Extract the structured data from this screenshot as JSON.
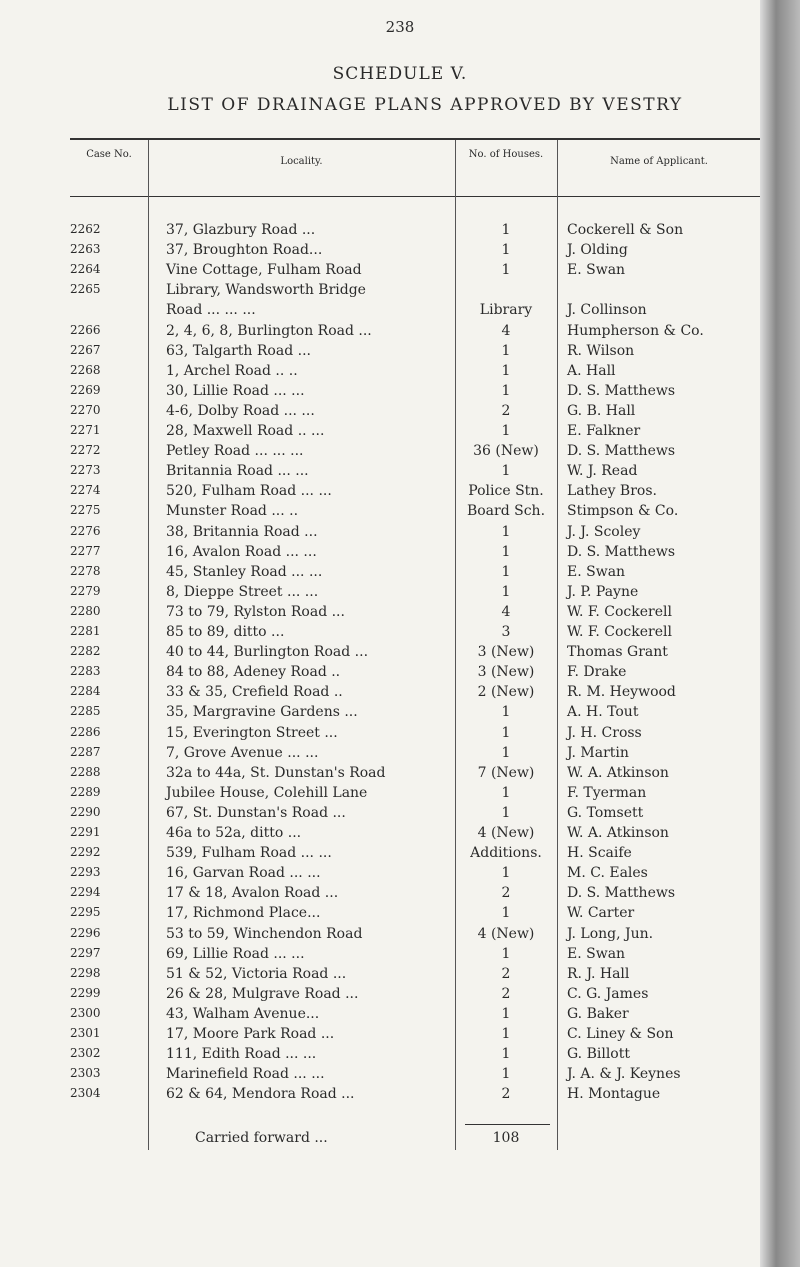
{
  "page_number": "238",
  "schedule": "SCHEDULE V.",
  "title": "LIST OF DRAINAGE PLANS APPROVED BY VESTRY",
  "headers": {
    "case": "Case No.",
    "locality": "Locality.",
    "houses": "No. of Houses.",
    "applicant": "Name of Applicant."
  },
  "rows": [
    [
      "2262",
      "37, Glazbury Road ...",
      "1",
      "Cockerell & Son"
    ],
    [
      "2263",
      "37, Broughton Road...",
      "1",
      "J. Olding"
    ],
    [
      "2264",
      "Vine Cottage, Fulham Road",
      "1",
      "E. Swan"
    ],
    [
      "2265",
      "Library, Wandsworth Bridge",
      "",
      ""
    ],
    [
      "",
      "   Road ... ... ...",
      "Library",
      "J. Collinson"
    ],
    [
      "2266",
      "2, 4, 6, 8, Burlington Road ...",
      "4",
      "Humpherson & Co."
    ],
    [
      "2267",
      "63, Talgarth Road ...",
      "1",
      "R. Wilson"
    ],
    [
      "2268",
      "1, Archel Road .. ..",
      "1",
      "A. Hall"
    ],
    [
      "2269",
      "30, Lillie Road ... ...",
      "1",
      "D. S. Matthews"
    ],
    [
      "2270",
      "4-6, Dolby Road ... ...",
      "2",
      "G. B. Hall"
    ],
    [
      "2271",
      "28, Maxwell Road .. ...",
      "1",
      "E. Falkner"
    ],
    [
      "2272",
      "Petley Road ... ... ...",
      "36 (New)",
      "D. S. Matthews"
    ],
    [
      "2273",
      "Britannia Road ... ...",
      "1",
      "W. J. Read"
    ],
    [
      "2274",
      "520, Fulham Road ... ...",
      "Police Stn.",
      "Lathey Bros."
    ],
    [
      "2275",
      "Munster Road ... ..",
      "Board Sch.",
      "Stimpson & Co."
    ],
    [
      "2276",
      "38, Britannia Road ...",
      "1",
      "J. J. Scoley"
    ],
    [
      "2277",
      "16, Avalon Road ... ...",
      "1",
      "D. S. Matthews"
    ],
    [
      "2278",
      "45, Stanley Road ... ...",
      "1",
      "E. Swan"
    ],
    [
      "2279",
      "8, Dieppe Street ... ...",
      "1",
      "J. P. Payne"
    ],
    [
      "2280",
      "73 to 79, Rylston Road ...",
      "4",
      "W. F. Cockerell"
    ],
    [
      "2281",
      "85 to 89, ditto ...",
      "3",
      "W. F. Cockerell"
    ],
    [
      "2282",
      "40 to 44, Burlington Road ...",
      "3 (New)",
      "Thomas Grant"
    ],
    [
      "2283",
      "84 to 88, Adeney Road ..",
      "3 (New)",
      "F. Drake"
    ],
    [
      "2284",
      "33 & 35, Crefield Road ..",
      "2 (New)",
      "R. M. Heywood"
    ],
    [
      "2285",
      "35, Margravine Gardens ...",
      "1",
      "A. H. Tout"
    ],
    [
      "2286",
      "15, Everington Street ...",
      "1",
      "J. H. Cross"
    ],
    [
      "2287",
      "7, Grove Avenue ... ...",
      "1",
      "J. Martin"
    ],
    [
      "2288",
      "32a to 44a, St. Dunstan's Road",
      "7 (New)",
      "W. A. Atkinson"
    ],
    [
      "2289",
      "Jubilee House, Colehill Lane",
      "1",
      "F. Tyerman"
    ],
    [
      "2290",
      "67, St. Dunstan's Road ...",
      "1",
      "G. Tomsett"
    ],
    [
      "2291",
      "46a to 52a, ditto ...",
      "4 (New)",
      "W. A. Atkinson"
    ],
    [
      "2292",
      "539, Fulham Road ... ...",
      "Additions.",
      "H. Scaife"
    ],
    [
      "2293",
      "16, Garvan Road ... ...",
      "1",
      "M. C. Eales"
    ],
    [
      "2294",
      "17 & 18, Avalon Road ...",
      "2",
      "D. S. Matthews"
    ],
    [
      "2295",
      "17, Richmond Place...",
      "1",
      "W. Carter"
    ],
    [
      "2296",
      "53 to 59, Winchendon Road",
      "4 (New)",
      "J. Long, Jun."
    ],
    [
      "2297",
      "69, Lillie Road ... ...",
      "1",
      "E. Swan"
    ],
    [
      "2298",
      "51 & 52, Victoria Road ...",
      "2",
      "R. J. Hall"
    ],
    [
      "2299",
      "26 & 28, Mulgrave Road ...",
      "2",
      "C. G. James"
    ],
    [
      "2300",
      "43, Walham Avenue...",
      "1",
      "G. Baker"
    ],
    [
      "2301",
      "17, Moore Park Road ...",
      "1",
      "C. Liney & Son"
    ],
    [
      "2302",
      "111, Edith Road ... ...",
      "1",
      "G. Billott"
    ],
    [
      "2303",
      "Marinefield Road ... ...",
      "1",
      "J. A. & J. Keynes"
    ],
    [
      "2304",
      "62 & 64, Mendora Road ...",
      "2",
      "H. Montague"
    ]
  ],
  "carried_forward": {
    "label": "Carried forward ...",
    "total": "108"
  }
}
